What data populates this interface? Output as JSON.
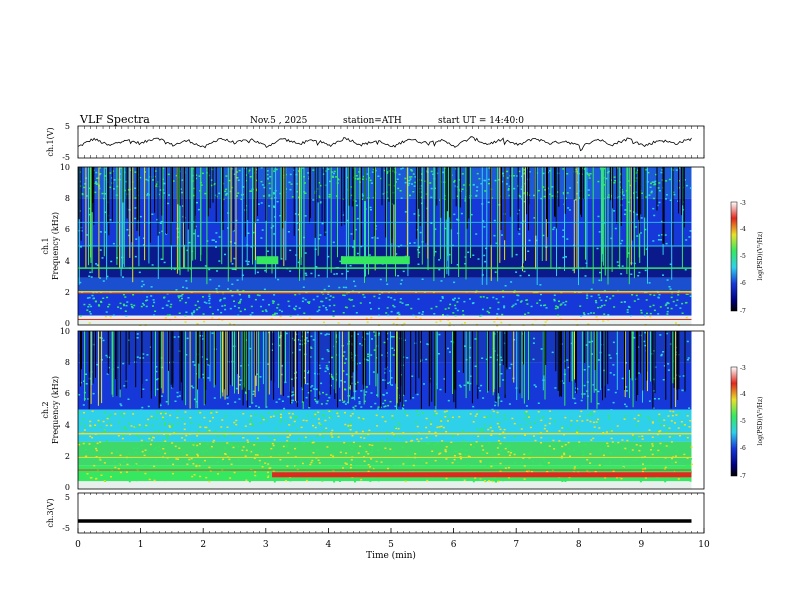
{
  "header": {
    "title": "VLF  Spectra",
    "date": "Nov.5  , 2025",
    "station": "station=ATH",
    "start_ut": "start  UT  =   14:40:0"
  },
  "chart_data": [
    {
      "type": "line",
      "name": "ch1-waveform",
      "ylabel": "ch.1(V)",
      "ylim": [
        -5,
        5
      ],
      "yticks": [
        "5",
        "-5"
      ],
      "series": [
        {
          "name": "ch.1",
          "values": [
            -1.5,
            1.0,
            -1.2,
            0.8,
            -0.5,
            1.5,
            -1.0,
            0.5,
            -1.8,
            1.2,
            -0.3,
            0.9,
            -1.4,
            1.1,
            -0.6,
            0.7,
            -1.1,
            1.3,
            -0.9,
            0.4,
            -1.6,
            1.0,
            -0.2,
            0.6,
            -1.3,
            1.4,
            -0.7,
            0.8,
            -1.0,
            1.2,
            -0.4,
            0.3,
            -1.5,
            0.9,
            -0.8,
            1.1,
            -1.2,
            0.6,
            -0.5,
            1.0
          ]
        }
      ]
    },
    {
      "type": "heatmap",
      "name": "ch1-spectrogram",
      "ylabel_top": "ch.1",
      "ylabel": "Frequency  (kHz)",
      "ylim": [
        0,
        10
      ],
      "yticks": [
        "0",
        "2",
        "4",
        "6",
        "8",
        "10"
      ],
      "colorbar_label": "log(PSD)(V²/Hz)",
      "colorbar_range": [
        -7,
        -3
      ],
      "colorbar_ticks": [
        "-3",
        "-4",
        "-5",
        "-6",
        "-7"
      ],
      "notes": "Broadband bursts up to 10 kHz; persistent lines near 4 kHz and 2 kHz"
    },
    {
      "type": "heatmap",
      "name": "ch2-spectrogram",
      "ylabel_top": "ch.2",
      "ylabel": "Frequency  (kHz)",
      "ylim": [
        0,
        10
      ],
      "yticks": [
        "0",
        "2",
        "4",
        "6",
        "8",
        "10"
      ],
      "colorbar_label": "log(PSD)(V²/Hz)",
      "colorbar_range": [
        -7,
        -3
      ],
      "colorbar_ticks": [
        "-3",
        "-4",
        "-5",
        "-6",
        "-7"
      ],
      "notes": "Strong band near 1 kHz from ~3.2 min; green band 2-5 kHz"
    },
    {
      "type": "line",
      "name": "ch3-waveform",
      "ylabel": "ch.3(V)",
      "ylim": [
        -5,
        5
      ],
      "yticks": [
        "5",
        "-5"
      ],
      "series": [
        {
          "name": "ch.3",
          "values": [
            -2,
            -2,
            -2,
            -2,
            -2,
            -2,
            -2,
            -2,
            -2,
            -2,
            -2
          ]
        }
      ]
    }
  ],
  "xaxis": {
    "label": "Time  (min)",
    "ticks": [
      "0",
      "1",
      "2",
      "3",
      "4",
      "5",
      "6",
      "7",
      "8",
      "9",
      "10"
    ],
    "range": [
      0,
      10
    ],
    "data_end": 9.8
  },
  "colors": {
    "deep_blue": "#0a1a8a",
    "blue": "#1638d8",
    "cyan": "#2fd0ea",
    "green": "#35e860",
    "yellow": "#e8e02a",
    "red": "#e0281e",
    "black": "#000000"
  }
}
